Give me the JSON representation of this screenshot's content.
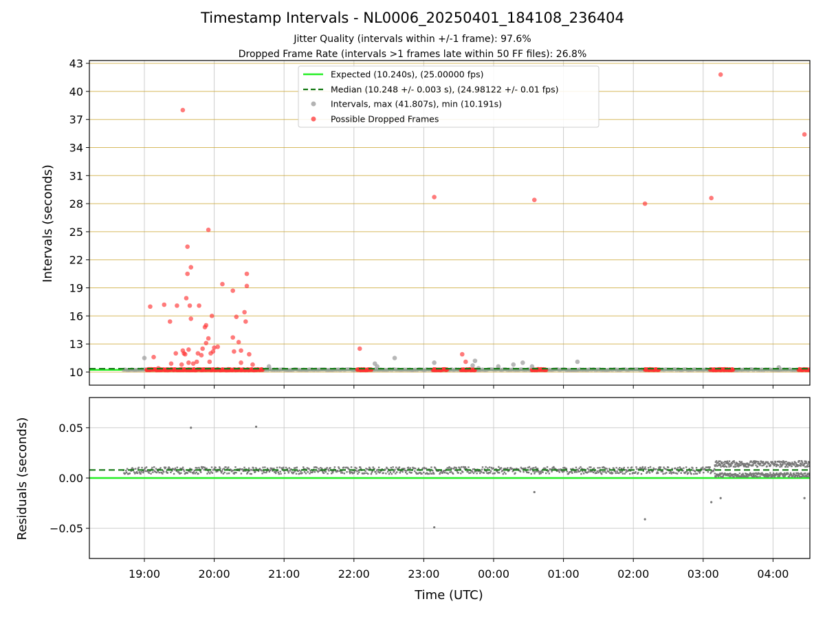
{
  "titles": {
    "main": "Timestamp Intervals - NL0006_20250401_184108_236404",
    "sub1": "Jitter Quality (intervals within +/-1 frame): 97.6%",
    "sub2": "Dropped Frame Rate (intervals >1 frames late within 50 FF files): 26.8%"
  },
  "colors": {
    "expected": "#22ee22",
    "median": "#117711",
    "interval": "#999999",
    "dropped": "#ff3333",
    "residual": "#777777",
    "hgrid": "#c9a227",
    "vgrid": "#cccccc"
  },
  "chart_data": [
    {
      "type": "scatter",
      "xlabel": "Time (UTC)",
      "ylabel": "Intervals (seconds)",
      "x_tick_labels": [
        "19:00",
        "20:00",
        "21:00",
        "22:00",
        "23:00",
        "00:00",
        "01:00",
        "02:00",
        "03:00",
        "04:00"
      ],
      "y_ticks": [
        10,
        13,
        16,
        19,
        22,
        25,
        28,
        31,
        34,
        37,
        40,
        43
      ],
      "ylim": [
        8.6,
        43.3
      ],
      "legend": [
        {
          "label": "Expected (10.240s), (25.00000 fps)",
          "kind": "solid-line"
        },
        {
          "label": "Median (10.248 +/- 0.003 s), (24.98122 +/- 0.01 fps)",
          "kind": "dashed-line"
        },
        {
          "label": "Intervals, max (41.807s), min (10.191s)",
          "kind": "grey-dot"
        },
        {
          "label": "Possible Dropped Frames",
          "kind": "red-dot"
        }
      ],
      "legend_position": "top-center",
      "expected": 10.24,
      "median": 10.248,
      "dense_baseline": {
        "from": "18:42",
        "to": "04:35",
        "y": 10.25
      },
      "dropped_clusters": [
        {
          "from": "19:02",
          "to": "20:42"
        },
        {
          "from": "22:03",
          "to": "22:15"
        },
        {
          "from": "23:08",
          "to": "23:20"
        },
        {
          "from": "23:32",
          "to": "23:44"
        },
        {
          "from": "00:33",
          "to": "00:45"
        },
        {
          "from": "02:10",
          "to": "02:22"
        },
        {
          "from": "03:06",
          "to": "03:26"
        },
        {
          "from": "04:22",
          "to": "04:35"
        }
      ],
      "dropped_points": [
        {
          "t": "19:05",
          "y": 17.0
        },
        {
          "t": "19:08",
          "y": 11.6
        },
        {
          "t": "19:12",
          "y": 10.4
        },
        {
          "t": "19:17",
          "y": 17.2
        },
        {
          "t": "19:20",
          "y": 10.2
        },
        {
          "t": "19:22",
          "y": 15.4
        },
        {
          "t": "19:23",
          "y": 10.9
        },
        {
          "t": "19:27",
          "y": 12.0
        },
        {
          "t": "19:28",
          "y": 17.1
        },
        {
          "t": "19:32",
          "y": 10.8
        },
        {
          "t": "19:33",
          "y": 12.3
        },
        {
          "t": "19:33",
          "y": 38.0
        },
        {
          "t": "19:34",
          "y": 12.0
        },
        {
          "t": "19:35",
          "y": 11.9
        },
        {
          "t": "19:36",
          "y": 17.9
        },
        {
          "t": "19:37",
          "y": 20.5
        },
        {
          "t": "19:37",
          "y": 23.4
        },
        {
          "t": "19:38",
          "y": 12.4
        },
        {
          "t": "19:38",
          "y": 11.0
        },
        {
          "t": "19:39",
          "y": 17.1
        },
        {
          "t": "19:40",
          "y": 15.7
        },
        {
          "t": "19:40",
          "y": 21.2
        },
        {
          "t": "19:42",
          "y": 10.9
        },
        {
          "t": "19:45",
          "y": 11.1
        },
        {
          "t": "19:46",
          "y": 12.0
        },
        {
          "t": "19:47",
          "y": 17.1
        },
        {
          "t": "19:49",
          "y": 11.8
        },
        {
          "t": "19:50",
          "y": 12.5
        },
        {
          "t": "19:52",
          "y": 14.8
        },
        {
          "t": "19:53",
          "y": 13.1
        },
        {
          "t": "19:53",
          "y": 15.0
        },
        {
          "t": "19:55",
          "y": 13.6
        },
        {
          "t": "19:55",
          "y": 25.2
        },
        {
          "t": "19:56",
          "y": 11.1
        },
        {
          "t": "19:57",
          "y": 12.0
        },
        {
          "t": "19:58",
          "y": 16.0
        },
        {
          "t": "19:59",
          "y": 12.2
        },
        {
          "t": "20:00",
          "y": 12.6
        },
        {
          "t": "20:03",
          "y": 12.7
        },
        {
          "t": "20:07",
          "y": 19.4
        },
        {
          "t": "20:16",
          "y": 18.7
        },
        {
          "t": "20:16",
          "y": 13.7
        },
        {
          "t": "20:17",
          "y": 12.2
        },
        {
          "t": "20:19",
          "y": 15.9
        },
        {
          "t": "20:21",
          "y": 13.2
        },
        {
          "t": "20:23",
          "y": 12.3
        },
        {
          "t": "20:23",
          "y": 11.0
        },
        {
          "t": "20:26",
          "y": 16.4
        },
        {
          "t": "20:27",
          "y": 15.4
        },
        {
          "t": "20:28",
          "y": 19.2
        },
        {
          "t": "20:28",
          "y": 20.5
        },
        {
          "t": "20:30",
          "y": 11.9
        },
        {
          "t": "20:33",
          "y": 10.8
        },
        {
          "t": "22:05",
          "y": 12.5
        },
        {
          "t": "23:09",
          "y": 28.7
        },
        {
          "t": "23:33",
          "y": 11.9
        },
        {
          "t": "23:36",
          "y": 11.1
        },
        {
          "t": "00:35",
          "y": 28.4
        },
        {
          "t": "02:10",
          "y": 28.0
        },
        {
          "t": "03:07",
          "y": 28.6
        },
        {
          "t": "03:15",
          "y": 41.8
        },
        {
          "t": "04:27",
          "y": 35.4
        }
      ],
      "interval_points": [
        {
          "t": "19:00",
          "y": 11.5
        },
        {
          "t": "20:47",
          "y": 10.6
        },
        {
          "t": "22:18",
          "y": 10.9
        },
        {
          "t": "22:20",
          "y": 10.6
        },
        {
          "t": "22:35",
          "y": 11.5
        },
        {
          "t": "23:09",
          "y": 11.0
        },
        {
          "t": "23:42",
          "y": 10.7
        },
        {
          "t": "23:44",
          "y": 11.2
        },
        {
          "t": "23:47",
          "y": 10.4
        },
        {
          "t": "00:04",
          "y": 10.6
        },
        {
          "t": "00:17",
          "y": 10.8
        },
        {
          "t": "00:25",
          "y": 11.0
        },
        {
          "t": "00:33",
          "y": 10.6
        },
        {
          "t": "01:12",
          "y": 11.1
        },
        {
          "t": "04:05",
          "y": 10.5
        }
      ]
    },
    {
      "type": "scatter",
      "xlabel": "Time (UTC)",
      "ylabel": "Residuals (seconds)",
      "y_tick_labels": [
        "−0.05",
        "0.00",
        "0.05"
      ],
      "y_ticks": [
        -0.05,
        0.0,
        0.05
      ],
      "ylim": [
        -0.08,
        0.08
      ],
      "expected": 0.0,
      "median": 0.008,
      "band_main": {
        "from": "18:42",
        "to": "03:10",
        "center": 0.0075,
        "spread": 0.0035
      },
      "band_upper": {
        "from": "03:10",
        "to": "04:35",
        "center": 0.014,
        "spread": 0.003
      },
      "band_lower": {
        "from": "03:10",
        "to": "04:35",
        "center": 0.003,
        "spread": 0.002
      },
      "outliers": [
        {
          "t": "19:40",
          "y": 0.05
        },
        {
          "t": "20:36",
          "y": 0.051
        },
        {
          "t": "23:09",
          "y": -0.049
        },
        {
          "t": "00:35",
          "y": -0.014
        },
        {
          "t": "02:10",
          "y": -0.041
        },
        {
          "t": "03:07",
          "y": -0.024
        },
        {
          "t": "03:15",
          "y": -0.02
        },
        {
          "t": "04:27",
          "y": -0.02
        }
      ]
    }
  ]
}
